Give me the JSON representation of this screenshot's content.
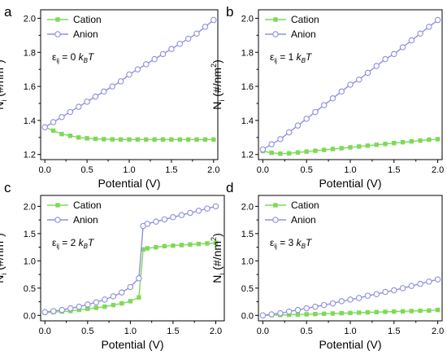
{
  "colors": {
    "cation": "#7ed957",
    "anion": "#8f8fe0",
    "axis": "#000000"
  },
  "chart_data": [
    {
      "type": "line",
      "panel": "a",
      "xlabel": "Potential (V)",
      "ylabel": "N_i (#/nm^2)",
      "ylabel_parts": {
        "main": "N",
        "sub": "i",
        "rest": " (#/nm",
        "sup": "2",
        "close": ")"
      },
      "xlim": [
        -0.05,
        2.05
      ],
      "ylim": [
        1.17,
        2.05
      ],
      "xticks": [
        0.0,
        0.5,
        1.0,
        1.5,
        2.0
      ],
      "xtick_labels": [
        "0.0",
        "0.5",
        "1.0",
        "1.5",
        "2.0"
      ],
      "yticks": [
        1.2,
        1.4,
        1.6,
        1.8,
        2.0
      ],
      "ytick_labels": [
        "1.2",
        "1.4",
        "1.6",
        "1.8",
        "2.0"
      ],
      "annotation": {
        "pre": "ε",
        "sub": "ij",
        "mid": " = 0 ",
        "k": "k",
        "ksub": "B",
        "T": "T"
      },
      "x": [
        0.0,
        0.1,
        0.2,
        0.3,
        0.4,
        0.5,
        0.6,
        0.7,
        0.8,
        0.9,
        1.0,
        1.1,
        1.2,
        1.3,
        1.4,
        1.5,
        1.6,
        1.7,
        1.8,
        1.9,
        2.0
      ],
      "series": [
        {
          "name": "Cation",
          "marker": "square",
          "values": [
            1.36,
            1.34,
            1.32,
            1.31,
            1.3,
            1.295,
            1.292,
            1.29,
            1.289,
            1.288,
            1.288,
            1.288,
            1.288,
            1.288,
            1.288,
            1.288,
            1.288,
            1.288,
            1.288,
            1.288,
            1.288
          ]
        },
        {
          "name": "Anion",
          "marker": "circle",
          "values": [
            1.36,
            1.39,
            1.42,
            1.45,
            1.48,
            1.51,
            1.54,
            1.57,
            1.6,
            1.63,
            1.67,
            1.7,
            1.73,
            1.76,
            1.79,
            1.82,
            1.85,
            1.88,
            1.91,
            1.95,
            1.99
          ]
        }
      ]
    },
    {
      "type": "line",
      "panel": "b",
      "xlabel": "Potential (V)",
      "ylabel": "N_i (#/nm^2)",
      "ylabel_parts": {
        "main": "N",
        "sub": "i",
        "rest": " (#/nm",
        "sup": "2",
        "close": ")"
      },
      "xlim": [
        -0.05,
        2.05
      ],
      "ylim": [
        1.17,
        2.05
      ],
      "xticks": [
        0.0,
        0.5,
        1.0,
        1.5,
        2.0
      ],
      "xtick_labels": [
        "0.0",
        "0.5",
        "1.0",
        "1.5",
        "2.0"
      ],
      "yticks": [
        1.2,
        1.4,
        1.6,
        1.8,
        2.0
      ],
      "ytick_labels": [
        "1.2",
        "1.4",
        "1.6",
        "1.8",
        "2.0"
      ],
      "annotation": {
        "pre": "ε",
        "sub": "ij",
        "mid": " = 1 ",
        "k": "k",
        "ksub": "B",
        "T": "T"
      },
      "x": [
        0.0,
        0.1,
        0.2,
        0.3,
        0.4,
        0.5,
        0.6,
        0.7,
        0.8,
        0.9,
        1.0,
        1.1,
        1.2,
        1.3,
        1.4,
        1.5,
        1.6,
        1.7,
        1.8,
        1.9,
        2.0
      ],
      "series": [
        {
          "name": "Cation",
          "marker": "square",
          "values": [
            1.22,
            1.21,
            1.205,
            1.207,
            1.212,
            1.217,
            1.222,
            1.227,
            1.232,
            1.237,
            1.242,
            1.247,
            1.252,
            1.257,
            1.262,
            1.267,
            1.272,
            1.277,
            1.282,
            1.287,
            1.29
          ]
        },
        {
          "name": "Anion",
          "marker": "circle",
          "values": [
            1.23,
            1.26,
            1.29,
            1.33,
            1.37,
            1.41,
            1.45,
            1.49,
            1.53,
            1.57,
            1.61,
            1.64,
            1.68,
            1.72,
            1.76,
            1.79,
            1.83,
            1.87,
            1.91,
            1.95,
            1.99
          ]
        }
      ]
    },
    {
      "type": "line",
      "panel": "c",
      "xlabel": "Potential (V)",
      "ylabel": "N_i (#/nm^2)",
      "ylabel_parts": {
        "main": "N",
        "sub": "i",
        "rest": " (#/nm",
        "sup": "2",
        "close": ")"
      },
      "xlim": [
        -0.05,
        2.1
      ],
      "ylim": [
        -0.1,
        2.2
      ],
      "xticks": [
        0.0,
        0.5,
        1.0,
        1.5,
        2.0
      ],
      "xtick_labels": [
        "0.0",
        "0.5",
        "1.0",
        "1.5",
        "2.0"
      ],
      "yticks": [
        0.0,
        0.5,
        1.0,
        1.5,
        2.0
      ],
      "ytick_labels": [
        "0.0",
        "0.5",
        "1.0",
        "1.5",
        "2.0"
      ],
      "annotation": {
        "pre": "ε",
        "sub": "ij",
        "mid": " = 2 ",
        "k": "k",
        "ksub": "B",
        "T": "T"
      },
      "x": [
        0.0,
        0.1,
        0.2,
        0.3,
        0.4,
        0.5,
        0.6,
        0.7,
        0.8,
        0.9,
        1.0,
        1.1,
        1.15,
        1.2,
        1.3,
        1.4,
        1.5,
        1.6,
        1.7,
        1.8,
        1.9,
        2.0
      ],
      "series": [
        {
          "name": "Cation",
          "marker": "square",
          "values": [
            0.05,
            0.06,
            0.07,
            0.08,
            0.1,
            0.12,
            0.14,
            0.16,
            0.19,
            0.22,
            0.26,
            0.33,
            1.21,
            1.23,
            1.25,
            1.27,
            1.28,
            1.29,
            1.3,
            1.31,
            1.32,
            1.33
          ]
        },
        {
          "name": "Anion",
          "marker": "circle",
          "values": [
            0.06,
            0.08,
            0.1,
            0.13,
            0.16,
            0.2,
            0.24,
            0.29,
            0.35,
            0.42,
            0.52,
            0.68,
            1.64,
            1.68,
            1.72,
            1.76,
            1.8,
            1.84,
            1.88,
            1.92,
            1.96,
            2.0
          ]
        }
      ]
    },
    {
      "type": "line",
      "panel": "d",
      "xlabel": "Potential (V)",
      "ylabel": "N_i (#/nm^2)",
      "ylabel_parts": {
        "main": "N",
        "sub": "i",
        "rest": " (#/nm",
        "sup": "2",
        "close": ")"
      },
      "xlim": [
        -0.05,
        2.05
      ],
      "ylim": [
        -0.1,
        2.2
      ],
      "xticks": [
        0.0,
        0.5,
        1.0,
        1.5,
        2.0
      ],
      "xtick_labels": [
        "0.0",
        "0.5",
        "1.0",
        "1.5",
        "2.0"
      ],
      "yticks": [
        0.0,
        0.5,
        1.0,
        1.5,
        2.0
      ],
      "ytick_labels": [
        "0.0",
        "0.5",
        "1.0",
        "1.5",
        "2.0"
      ],
      "annotation": {
        "pre": "ε",
        "sub": "ij",
        "mid": " = 3 ",
        "k": "k",
        "ksub": "B",
        "T": "T"
      },
      "x": [
        0.0,
        0.1,
        0.2,
        0.3,
        0.4,
        0.5,
        0.6,
        0.7,
        0.8,
        0.9,
        1.0,
        1.1,
        1.2,
        1.3,
        1.4,
        1.5,
        1.6,
        1.7,
        1.8,
        1.9,
        2.0
      ],
      "series": [
        {
          "name": "Cation",
          "marker": "square",
          "values": [
            0.0,
            0.004,
            0.008,
            0.012,
            0.016,
            0.02,
            0.025,
            0.03,
            0.035,
            0.04,
            0.045,
            0.05,
            0.055,
            0.06,
            0.065,
            0.07,
            0.075,
            0.08,
            0.085,
            0.09,
            0.1
          ]
        },
        {
          "name": "Anion",
          "marker": "circle",
          "values": [
            0.0,
            0.02,
            0.04,
            0.07,
            0.1,
            0.13,
            0.16,
            0.19,
            0.22,
            0.26,
            0.29,
            0.32,
            0.36,
            0.39,
            0.43,
            0.46,
            0.5,
            0.54,
            0.58,
            0.62,
            0.66
          ]
        }
      ]
    }
  ]
}
